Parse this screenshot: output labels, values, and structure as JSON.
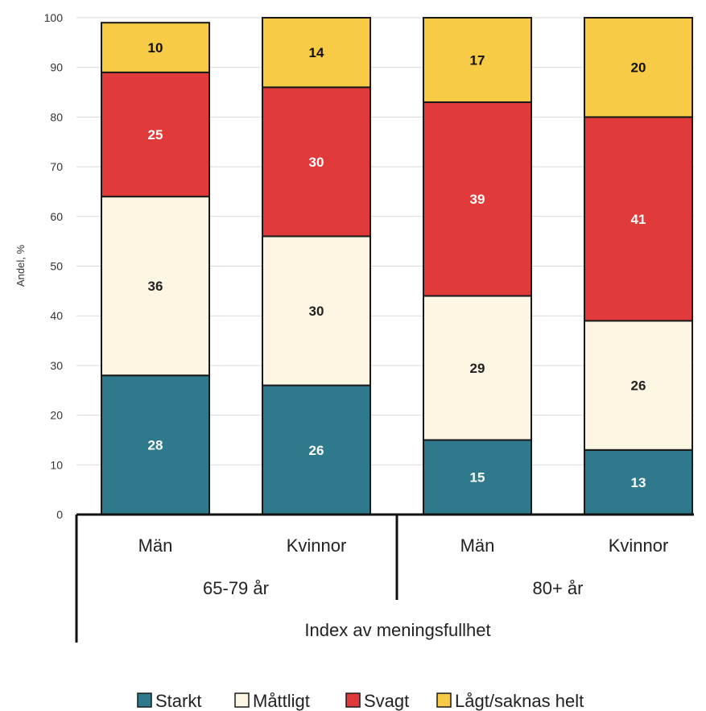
{
  "chart_data": {
    "type": "bar",
    "stacked": true,
    "title": "",
    "ylabel": "Andel, %",
    "xlabel": "Index av meningsfullhet",
    "ylim": [
      0,
      100
    ],
    "yticks": [
      0,
      10,
      20,
      30,
      40,
      50,
      60,
      70,
      80,
      90,
      100
    ],
    "grid": true,
    "legend_position": "bottom",
    "categories": [
      "Män",
      "Kvinnor",
      "Män",
      "Kvinnor"
    ],
    "groups": [
      {
        "label": "65-79 år",
        "categories": [
          0,
          1
        ]
      },
      {
        "label": "80+ år",
        "categories": [
          2,
          3
        ]
      }
    ],
    "series": [
      {
        "name": "Starkt",
        "color": "#2e7a8c",
        "label_color": "#ffffff",
        "values": [
          28,
          26,
          15,
          13
        ]
      },
      {
        "name": "Måttligt",
        "color": "#fdf6e3",
        "label_color": "#222222",
        "values": [
          36,
          30,
          29,
          26
        ]
      },
      {
        "name": "Svagt",
        "color": "#e03a3a",
        "label_color": "#ffffff",
        "values": [
          25,
          30,
          39,
          41
        ]
      },
      {
        "name": "Lågt/saknas helt",
        "color": "#f7cb45",
        "label_color": "#111111",
        "values": [
          10,
          14,
          17,
          20
        ]
      }
    ]
  }
}
